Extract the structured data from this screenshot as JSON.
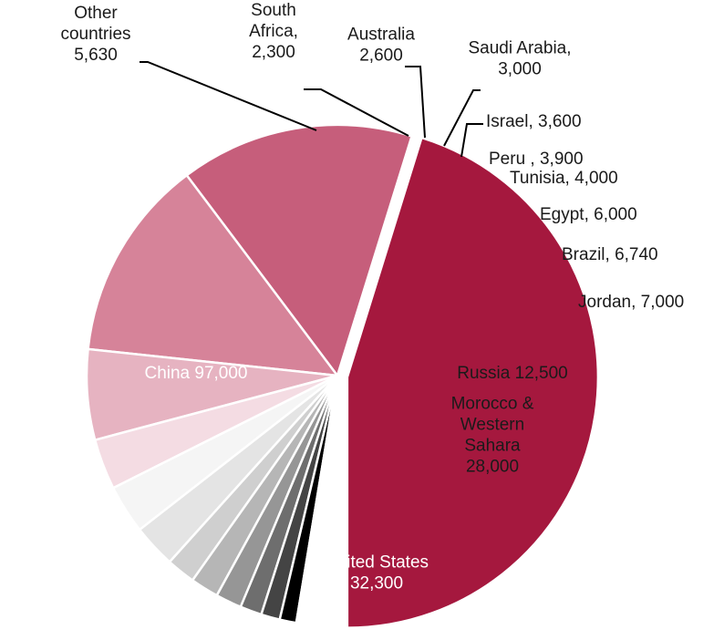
{
  "chart_data": {
    "type": "pie",
    "title": "",
    "slices": [
      {
        "label": "China",
        "value": 97000,
        "display": [
          "China  97,000"
        ],
        "color": "#a5183e"
      },
      {
        "label": "United States",
        "value": 32300,
        "display": [
          "United States",
          "32,300"
        ],
        "color": "#c65e7b"
      },
      {
        "label": "Morocco & Western Sahara",
        "value": 28000,
        "display": [
          "Morocco &",
          "Western",
          "Sahara",
          "28,000"
        ],
        "color": "#d68399"
      },
      {
        "label": "Russia",
        "value": 12500,
        "display": [
          "Russia 12,500"
        ],
        "color": "#e6b3c1"
      },
      {
        "label": "Jordan",
        "value": 7000,
        "display": [
          "Jordan, 7,000"
        ],
        "color": "#f4dce3"
      },
      {
        "label": "Brazil",
        "value": 6740,
        "display": [
          "Brazil, 6,740"
        ],
        "color": "#f5f5f5"
      },
      {
        "label": "Egypt",
        "value": 6000,
        "display": [
          "Egypt, 6,000"
        ],
        "color": "#e4e4e4"
      },
      {
        "label": "Tunisia",
        "value": 4000,
        "display": [
          "Tunisia, 4,000"
        ],
        "color": "#cfcfcf"
      },
      {
        "label": "Peru",
        "value": 3900,
        "display": [
          "Peru , 3,900"
        ],
        "color": "#b6b6b6"
      },
      {
        "label": "Israel",
        "value": 3600,
        "display": [
          "Israel, 3,600"
        ],
        "color": "#969696"
      },
      {
        "label": "Saudi Arabia",
        "value": 3000,
        "display": [
          "Saudi Arabia,",
          "3,000"
        ],
        "color": "#6e6e6e"
      },
      {
        "label": "Australia",
        "value": 2600,
        "display": [
          "Australia",
          "2,600"
        ],
        "color": "#444444"
      },
      {
        "label": "South Africa",
        "value": 2300,
        "display": [
          "South",
          "Africa,",
          "2,300"
        ],
        "color": "#000000"
      },
      {
        "label": "Other countries",
        "value": 5630,
        "display": [
          "Other",
          "countries",
          "5,630"
        ],
        "color": "#ffffff"
      }
    ],
    "legend": "none"
  }
}
